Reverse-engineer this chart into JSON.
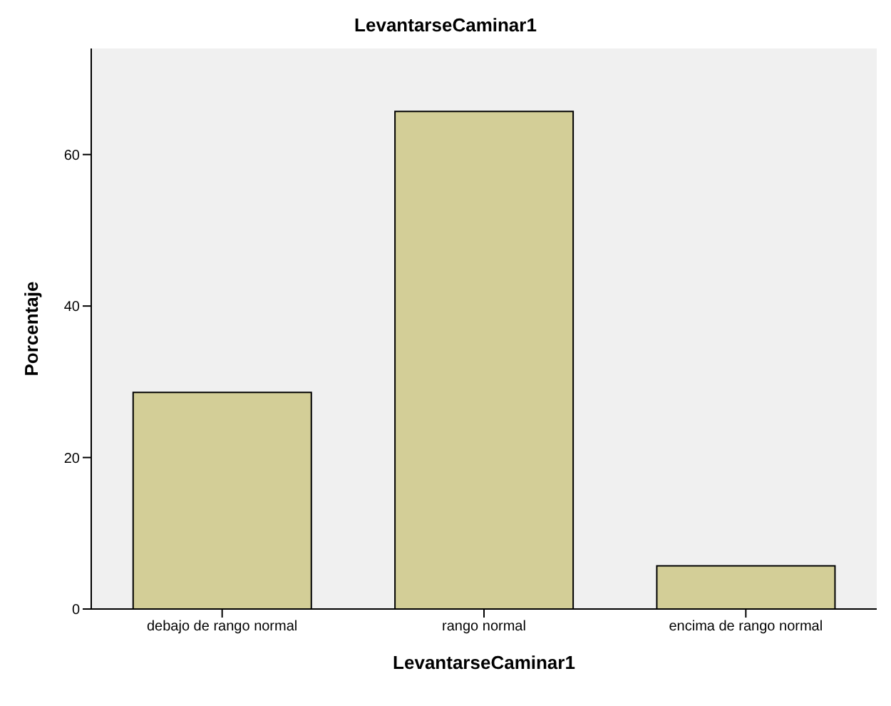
{
  "chart_data": {
    "type": "bar",
    "title": "LevantarseCaminar1",
    "xlabel": "LevantarseCaminar1",
    "ylabel": "Porcentaje",
    "categories": [
      "debajo de rango normal",
      "rango normal",
      "encima de rango normal"
    ],
    "values": [
      28.6,
      65.7,
      5.7
    ],
    "color": "#d3ce97",
    "ylim": [
      0,
      74
    ],
    "yticks": [
      0,
      20,
      40,
      60
    ],
    "grid": false,
    "legend": false
  }
}
